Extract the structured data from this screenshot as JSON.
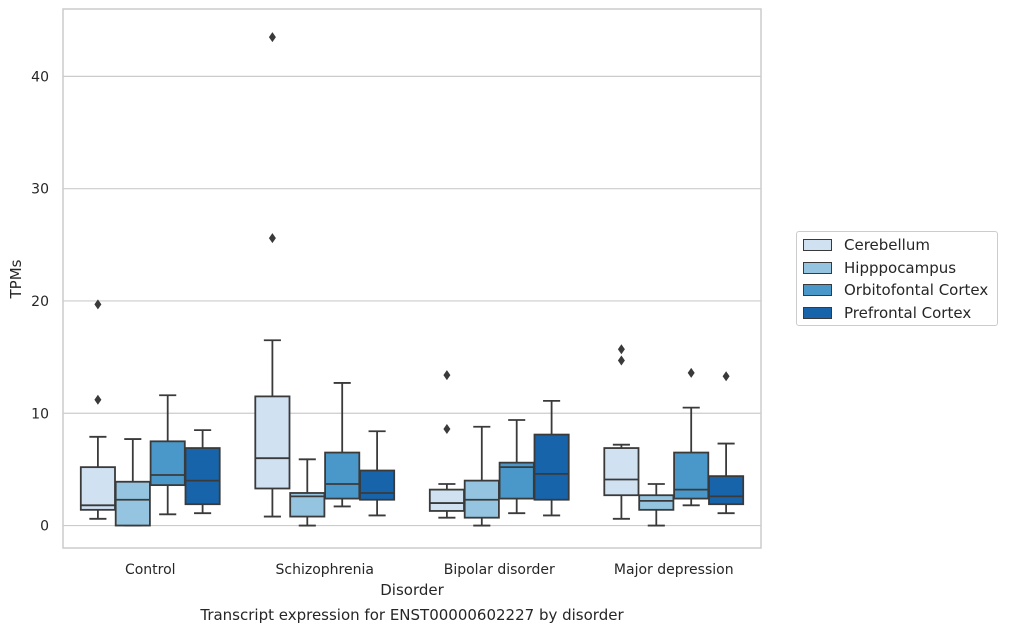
{
  "caption": "Transcript expression for ENST00000602227 by disorder",
  "legend": {
    "entries": [
      {
        "label": "Cerebellum",
        "color": "#d0e1f2"
      },
      {
        "label": "Hipppocampus",
        "color": "#94c4df"
      },
      {
        "label": "Orbitofontal Cortex",
        "color": "#4a98c9"
      },
      {
        "label": "Prefrontal Cortex",
        "color": "#1764ab"
      }
    ],
    "placement": "right, outside plot"
  },
  "chart_data": {
    "type": "box",
    "xlabel": "Disorder",
    "ylabel": "TPMs",
    "ylim": [
      -2,
      46
    ],
    "yticks": [
      0,
      10,
      20,
      30,
      40
    ],
    "grid": "horizontal",
    "categories": [
      "Control",
      "Schizophrenia",
      "Bipolar disorder",
      "Major depression"
    ],
    "series": [
      {
        "name": "Cerebellum",
        "color": "#d0e1f2",
        "boxes": [
          {
            "whislo": 0.6,
            "q1": 1.4,
            "med": 1.8,
            "q3": 5.2,
            "whishi": 7.9,
            "fliers": [
              11.2,
              19.7
            ]
          },
          {
            "whislo": 0.8,
            "q1": 3.3,
            "med": 6.0,
            "q3": 11.5,
            "whishi": 16.5,
            "fliers": [
              25.6,
              43.5
            ]
          },
          {
            "whislo": 0.7,
            "q1": 1.3,
            "med": 2.0,
            "q3": 3.2,
            "whishi": 3.7,
            "fliers": [
              8.6,
              13.4
            ]
          },
          {
            "whislo": 0.6,
            "q1": 2.7,
            "med": 4.1,
            "q3": 6.9,
            "whishi": 7.2,
            "fliers": [
              14.7,
              15.7
            ]
          }
        ]
      },
      {
        "name": "Hipppocampus",
        "color": "#94c4df",
        "boxes": [
          {
            "whislo": 0.0,
            "q1": 0.0,
            "med": 2.3,
            "q3": 3.9,
            "whishi": 7.7,
            "fliers": []
          },
          {
            "whislo": 0.0,
            "q1": 0.8,
            "med": 2.6,
            "q3": 2.9,
            "whishi": 5.9,
            "fliers": []
          },
          {
            "whislo": 0.0,
            "q1": 0.7,
            "med": 2.3,
            "q3": 4.0,
            "whishi": 8.8,
            "fliers": []
          },
          {
            "whislo": 0.0,
            "q1": 1.4,
            "med": 2.2,
            "q3": 2.7,
            "whishi": 3.7,
            "fliers": []
          }
        ]
      },
      {
        "name": "Orbitofontal Cortex",
        "color": "#4a98c9",
        "boxes": [
          {
            "whislo": 1.0,
            "q1": 3.6,
            "med": 4.5,
            "q3": 7.5,
            "whishi": 11.6,
            "fliers": []
          },
          {
            "whislo": 1.7,
            "q1": 2.4,
            "med": 3.7,
            "q3": 6.5,
            "whishi": 12.7,
            "fliers": []
          },
          {
            "whislo": 1.1,
            "q1": 2.4,
            "med": 5.2,
            "q3": 5.6,
            "whishi": 9.4,
            "fliers": []
          },
          {
            "whislo": 1.8,
            "q1": 2.4,
            "med": 3.2,
            "q3": 6.5,
            "whishi": 10.5,
            "fliers": [
              13.6
            ]
          }
        ]
      },
      {
        "name": "Prefrontal Cortex",
        "color": "#1764ab",
        "boxes": [
          {
            "whislo": 1.1,
            "q1": 1.9,
            "med": 4.0,
            "q3": 6.9,
            "whishi": 8.5,
            "fliers": []
          },
          {
            "whislo": 0.9,
            "q1": 2.3,
            "med": 2.9,
            "q3": 4.9,
            "whishi": 8.4,
            "fliers": []
          },
          {
            "whislo": 0.9,
            "q1": 2.3,
            "med": 4.6,
            "q3": 8.1,
            "whishi": 11.1,
            "fliers": []
          },
          {
            "whislo": 1.1,
            "q1": 1.9,
            "med": 2.6,
            "q3": 4.4,
            "whishi": 7.3,
            "fliers": [
              13.3
            ]
          }
        ]
      }
    ]
  }
}
